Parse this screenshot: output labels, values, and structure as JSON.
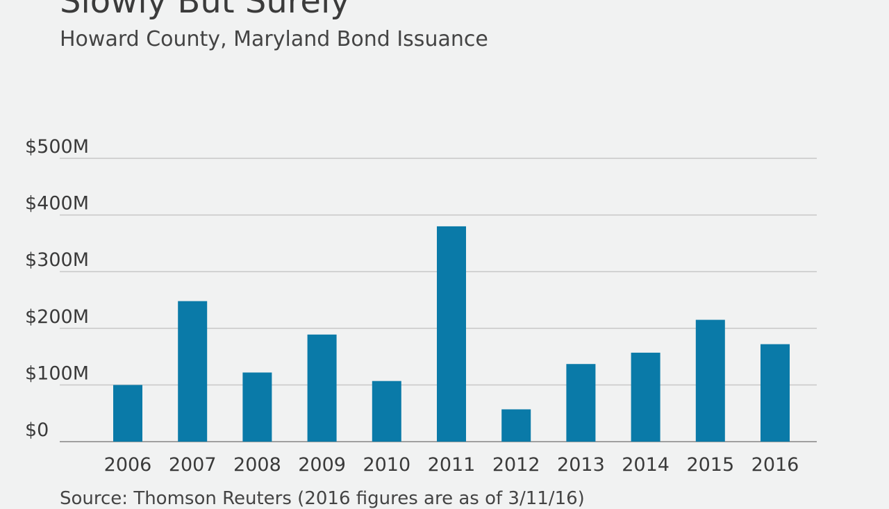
{
  "chart_data": {
    "type": "bar",
    "title": "Slowly But Surely",
    "subtitle": "Howard County, Maryland Bond Issuance",
    "source": "Source: Thomson Reuters (2016 figures are as of 3/11/16)",
    "categories": [
      "2006",
      "2007",
      "2008",
      "2009",
      "2010",
      "2011",
      "2012",
      "2013",
      "2014",
      "2015",
      "2016"
    ],
    "values": [
      100,
      248,
      122,
      189,
      107,
      380,
      57,
      137,
      157,
      215,
      172
    ],
    "y_unit": "$M",
    "ylim": [
      0,
      500
    ],
    "yticks": [
      0,
      100,
      200,
      300,
      400,
      500
    ],
    "ytick_labels": [
      "$0",
      "$100M",
      "$200M",
      "$300M",
      "$400M",
      "$500M"
    ],
    "grid": true,
    "bar_color": "#0a7aa8",
    "grid_color": "#c8c8c8",
    "axis_color": "#a0a0a0"
  }
}
